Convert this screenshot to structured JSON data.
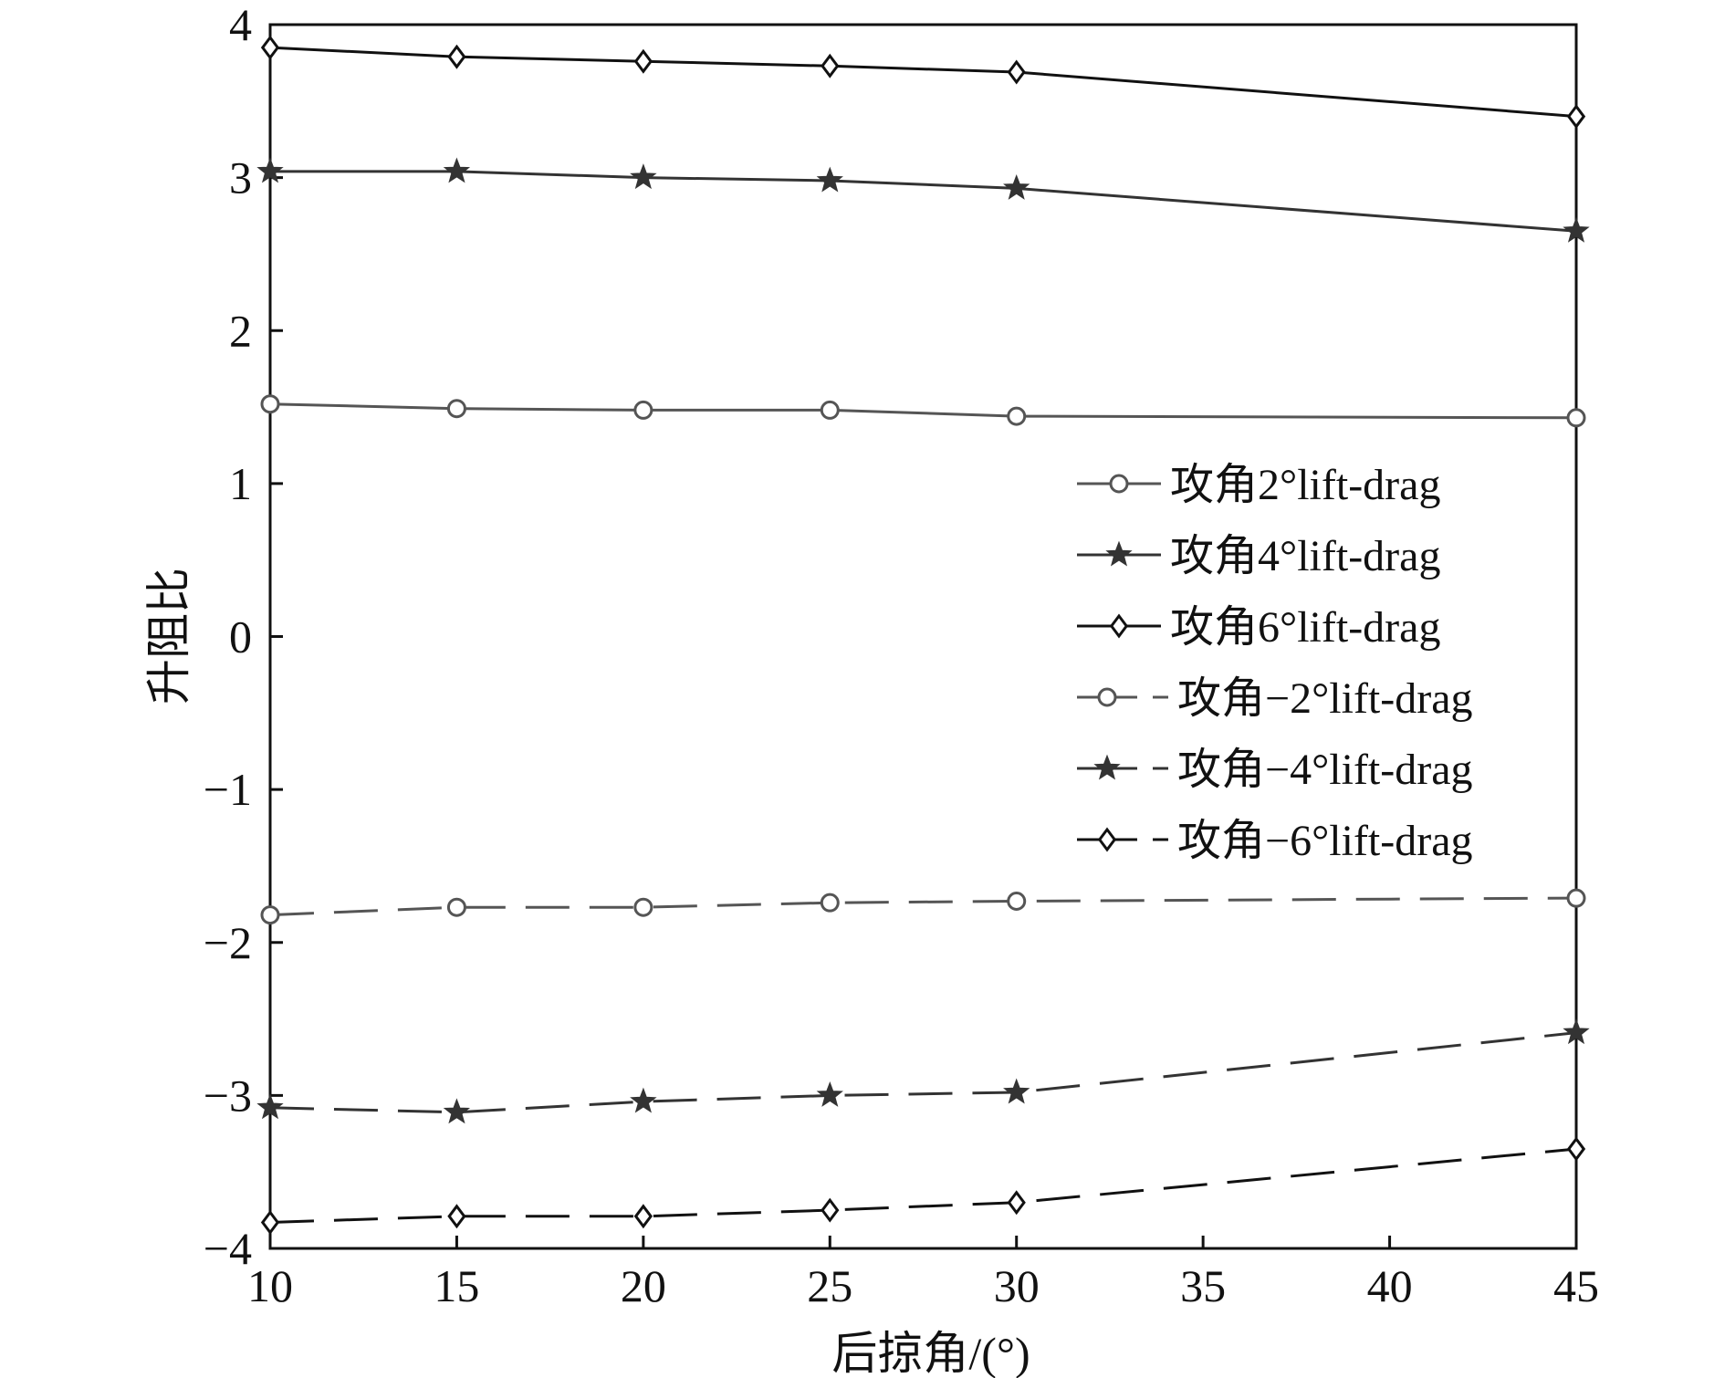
{
  "chart_data": {
    "type": "line",
    "xlabel": "后掠角/(°)",
    "ylabel": "升阻比",
    "xlim": [
      10,
      45
    ],
    "ylim": [
      -4,
      4
    ],
    "xticks": [
      "10",
      "15",
      "20",
      "25",
      "30",
      "35",
      "40",
      "45"
    ],
    "yticks": [
      "4",
      "3",
      "2",
      "1",
      "0",
      "−1",
      "−2",
      "−3",
      "−4"
    ],
    "grid": false,
    "legend_position": "right",
    "x": [
      10,
      15,
      20,
      25,
      30,
      45
    ],
    "series": [
      {
        "name": "攻角2°lift-drag",
        "values": [
          1.52,
          1.49,
          1.48,
          1.48,
          1.44,
          1.43
        ],
        "marker": "circle",
        "dash": "solid",
        "color": "#555555"
      },
      {
        "name": "攻角4°lift-drag",
        "values": [
          3.04,
          3.04,
          3.0,
          2.98,
          2.93,
          2.65
        ],
        "marker": "star",
        "dash": "solid",
        "color": "#333333"
      },
      {
        "name": "攻角6°lift-drag",
        "values": [
          3.85,
          3.79,
          3.76,
          3.73,
          3.69,
          3.4
        ],
        "marker": "diamond",
        "dash": "solid",
        "color": "#111111"
      },
      {
        "name": "攻角−2°lift-drag",
        "values": [
          -1.82,
          -1.77,
          -1.77,
          -1.74,
          -1.73,
          -1.71
        ],
        "marker": "circle",
        "dash": "dashed",
        "color": "#555555"
      },
      {
        "name": "攻角−4°lift-drag",
        "values": [
          -3.08,
          -3.11,
          -3.04,
          -3.0,
          -2.98,
          -2.59
        ],
        "marker": "star",
        "dash": "dashed",
        "color": "#333333"
      },
      {
        "name": "攻角−6°lift-drag",
        "values": [
          -3.83,
          -3.79,
          -3.79,
          -3.75,
          -3.7,
          -3.35
        ],
        "marker": "diamond",
        "dash": "dashed",
        "color": "#111111"
      }
    ]
  }
}
